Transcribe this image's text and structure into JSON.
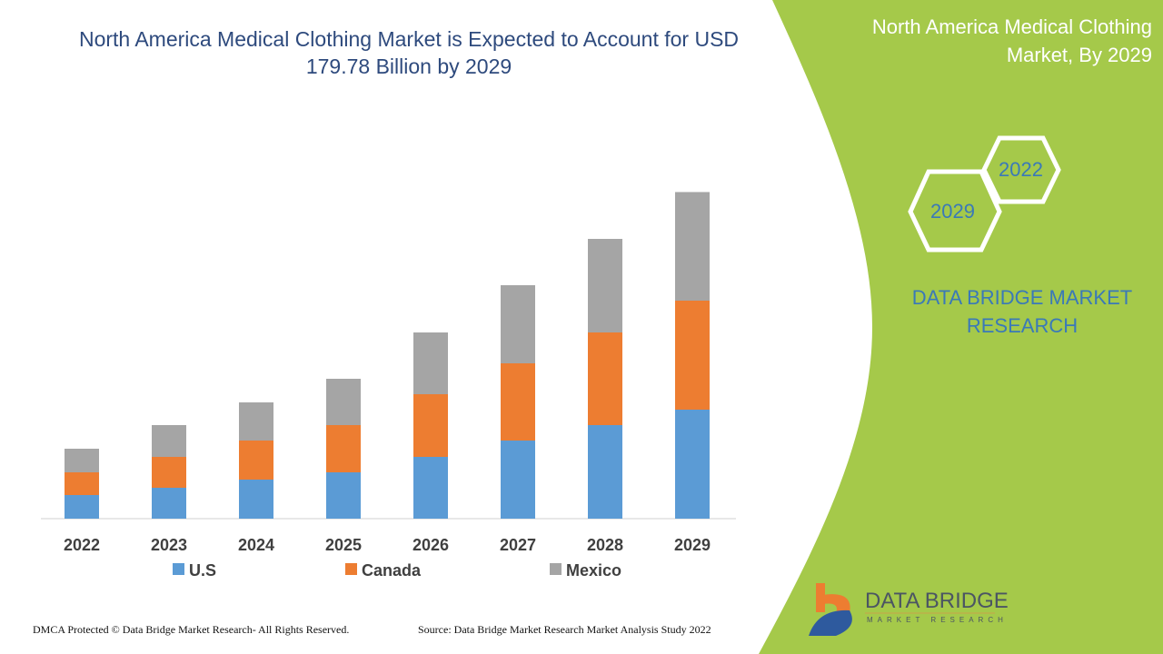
{
  "title": "North America Medical Clothing Market is Expected to Account for USD 179.78 Billion by 2029",
  "side_title": "North America Medical Clothing Market, By 2029",
  "hexagons": [
    "2022",
    "2029"
  ],
  "brand": "DATA BRIDGE MARKET RESEARCH",
  "logo": {
    "name": "DATA BRIDGE",
    "sub": "MARKET RESEARCH"
  },
  "footer": {
    "left": "DMCA Protected © Data Bridge Market Research- All Rights Reserved.",
    "right": "Source: Data Bridge Market Research Market Analysis Study 2022"
  },
  "colors": {
    "panel": "#a5c94a",
    "title": "#2e4a7d"
  },
  "chart_data": {
    "type": "bar",
    "stacked": true,
    "categories": [
      "2022",
      "2023",
      "2024",
      "2025",
      "2026",
      "2027",
      "2028",
      "2029"
    ],
    "series": [
      {
        "name": "U.S",
        "color": "#5b9bd5",
        "values": [
          13,
          17,
          21.5,
          25.5,
          34,
          43,
          51.5,
          60
        ]
      },
      {
        "name": "Canada",
        "color": "#ed7d31",
        "values": [
          12.5,
          17,
          21.5,
          26,
          34.5,
          42.5,
          51,
          60
        ]
      },
      {
        "name": "Mexico",
        "color": "#a5a5a5",
        "values": [
          13,
          17.5,
          21,
          25.5,
          34,
          43,
          51.5,
          59.78
        ]
      }
    ],
    "ylim": [
      0,
      180
    ],
    "grid": false,
    "legend": "bottom"
  }
}
